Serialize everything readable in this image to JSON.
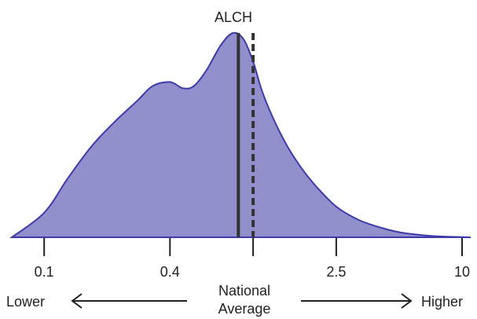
{
  "chart_data": {
    "type": "area",
    "title": "ALCH",
    "x_scale": "log",
    "x_ticks": [
      0.1,
      0.4,
      1,
      2.5,
      10
    ],
    "x_tick_labels": [
      "0.1",
      "0.4",
      "",
      "2.5",
      "10"
    ],
    "xlim": [
      0.07,
      11
    ],
    "density": {
      "x": [
        0.07,
        0.1,
        0.13,
        0.17,
        0.22,
        0.28,
        0.33,
        0.4,
        0.46,
        0.52,
        0.6,
        0.7,
        0.8,
        0.9,
        1.0,
        1.1,
        1.25,
        1.45,
        1.7,
        2.0,
        2.5,
        3.2,
        4.0,
        5.0,
        6.5,
        8.0,
        10,
        11
      ],
      "y": [
        0.0,
        0.12,
        0.29,
        0.45,
        0.57,
        0.67,
        0.74,
        0.76,
        0.73,
        0.74,
        0.82,
        0.94,
        1.0,
        0.97,
        0.86,
        0.72,
        0.58,
        0.45,
        0.34,
        0.25,
        0.15,
        0.085,
        0.05,
        0.025,
        0.01,
        0.004,
        0.001,
        0.0
      ]
    },
    "marker_solid_x": 0.85,
    "marker_dashed_x": 1.0,
    "fill_color": "#9190cc",
    "line_color": "#3d3aaa",
    "marker_color": "#333333"
  },
  "legend": {
    "lower_label": "Lower",
    "higher_label": "Higher",
    "center_line1": "National",
    "center_line2": "Average"
  }
}
